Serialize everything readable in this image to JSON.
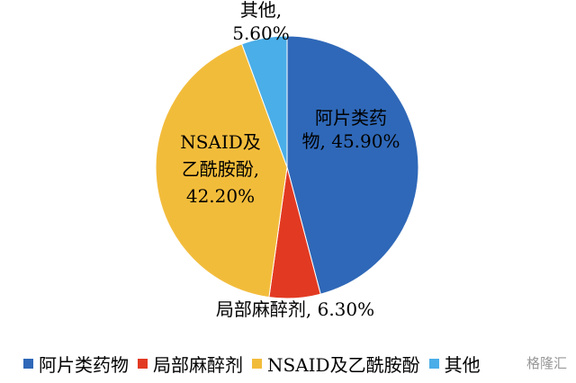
{
  "chart_data": {
    "type": "pie",
    "title": "",
    "slices": [
      {
        "name": "阿片类药物",
        "value": 45.9,
        "color": "#2f68b8",
        "label_lines": [
          "阿片类药",
          "物, 45.90%"
        ]
      },
      {
        "name": "局部麻醉剂",
        "value": 6.3,
        "color": "#e23a22",
        "label_lines": [
          "局部麻醉剂, 6.30%"
        ]
      },
      {
        "name": "NSAID及乙酰胺酚",
        "value": 42.2,
        "color": "#f2bc3b",
        "label_lines": [
          "NSAID及",
          "乙酰胺酚,",
          "42.20%"
        ]
      },
      {
        "name": "其他",
        "value": 5.6,
        "color": "#4aaee8",
        "label_lines": [
          "其他,",
          "5.60%"
        ]
      }
    ],
    "legend": {
      "placement": "bottom",
      "items": [
        "阿片类药物",
        "局部麻醉剂",
        "NSAID及乙酰胺酚",
        "其他"
      ]
    }
  },
  "watermark": "格隆汇"
}
